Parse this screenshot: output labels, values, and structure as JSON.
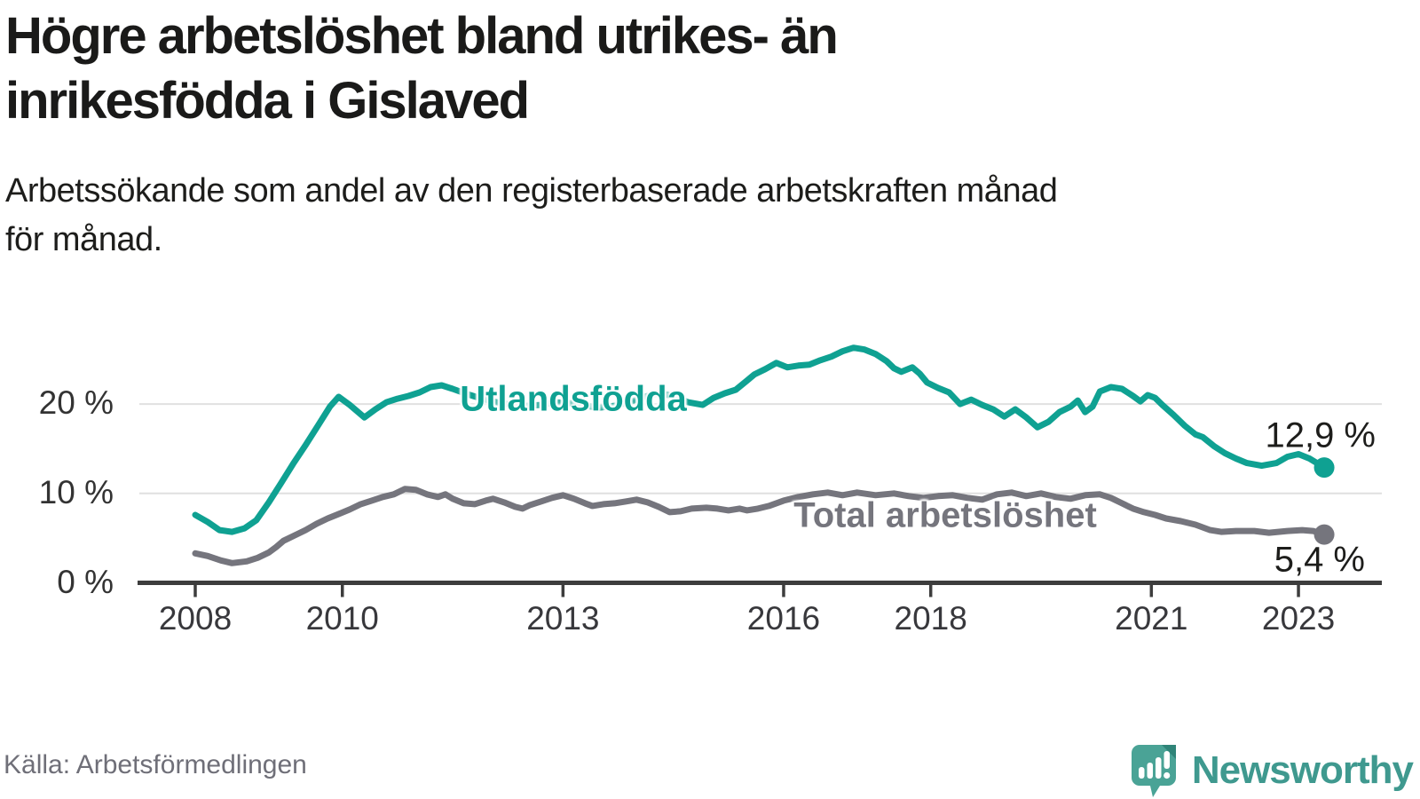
{
  "header": {
    "title_lines": [
      "Högre arbetslöshet bland utrikes- än",
      "inrikesfödda i Gislaved"
    ],
    "subtitle_lines": [
      "Arbetssökande som andel av den registerbaserade arbetskraften månad",
      "för månad."
    ]
  },
  "footer": {
    "source": "Källa: Arbetsförmedlingen",
    "brand_name": "Newsworthy"
  },
  "colors": {
    "foreign_born_line": "#0fa192",
    "total_line": "#75757d",
    "gridline": "#e0e0e0",
    "axis": "#3d3d3d",
    "axis_text": "#333333",
    "annotation_text": "#1d1d1b",
    "logo_teal": "#4aa396",
    "logo_fold": "#2f8478",
    "logo_wordmark": "#3f998f"
  },
  "chart_data": {
    "type": "line",
    "title": "Högre arbetslöshet bland utrikes- än inrikesfödda i Gislaved",
    "subtitle": "Arbetssökande som andel av den registerbaserade arbetskraften månad för månad.",
    "x_axis": {
      "tick_years": [
        2008,
        2010,
        2013,
        2016,
        2018,
        2021,
        2023
      ],
      "tick_labels": [
        "2008",
        "2010",
        "2013",
        "2016",
        "2018",
        "2021",
        "2023"
      ],
      "range": [
        2008,
        2023.35
      ],
      "grid": false
    },
    "y_axis": {
      "tick_values": [
        0,
        10,
        20
      ],
      "tick_labels": [
        "0 %",
        "10 %",
        "20 %"
      ],
      "range": [
        0,
        27
      ],
      "grid": true,
      "unit": "percent"
    },
    "legend_position": "inline-labels",
    "series": [
      {
        "name": "Utlandsfödda",
        "color": "#0fa192",
        "end_label": "12,9 %",
        "end_value": 12.9,
        "points": [
          [
            2008.0,
            7.6
          ],
          [
            2008.17,
            6.8
          ],
          [
            2008.33,
            5.9
          ],
          [
            2008.5,
            5.7
          ],
          [
            2008.67,
            6.1
          ],
          [
            2008.83,
            7.0
          ],
          [
            2009.0,
            9.0
          ],
          [
            2009.17,
            11.2
          ],
          [
            2009.33,
            13.3
          ],
          [
            2009.5,
            15.4
          ],
          [
            2009.67,
            17.6
          ],
          [
            2009.83,
            19.7
          ],
          [
            2009.95,
            20.8
          ],
          [
            2010.1,
            19.9
          ],
          [
            2010.3,
            18.5
          ],
          [
            2010.45,
            19.4
          ],
          [
            2010.6,
            20.2
          ],
          [
            2010.75,
            20.6
          ],
          [
            2010.9,
            20.9
          ],
          [
            2011.05,
            21.3
          ],
          [
            2011.2,
            21.9
          ],
          [
            2011.35,
            22.1
          ],
          [
            2011.5,
            21.7
          ],
          [
            2011.7,
            21.1
          ],
          [
            2011.9,
            20.6
          ],
          [
            2012.1,
            20.2
          ],
          [
            2012.3,
            19.9
          ],
          [
            2012.5,
            19.8
          ],
          [
            2012.7,
            19.9
          ],
          [
            2012.9,
            20.2
          ],
          [
            2013.1,
            20.1
          ],
          [
            2013.3,
            19.8
          ],
          [
            2013.5,
            19.6
          ],
          [
            2013.7,
            19.8
          ],
          [
            2013.9,
            20.2
          ],
          [
            2014.1,
            20.8
          ],
          [
            2014.3,
            21.2
          ],
          [
            2014.5,
            20.9
          ],
          [
            2014.7,
            20.2
          ],
          [
            2014.9,
            19.9
          ],
          [
            2015.05,
            20.7
          ],
          [
            2015.2,
            21.2
          ],
          [
            2015.35,
            21.6
          ],
          [
            2015.5,
            22.6
          ],
          [
            2015.6,
            23.3
          ],
          [
            2015.75,
            23.9
          ],
          [
            2015.9,
            24.6
          ],
          [
            2016.05,
            24.1
          ],
          [
            2016.2,
            24.3
          ],
          [
            2016.35,
            24.4
          ],
          [
            2016.5,
            24.9
          ],
          [
            2016.65,
            25.3
          ],
          [
            2016.8,
            25.9
          ],
          [
            2016.95,
            26.3
          ],
          [
            2017.1,
            26.1
          ],
          [
            2017.25,
            25.6
          ],
          [
            2017.4,
            24.8
          ],
          [
            2017.5,
            24.0
          ],
          [
            2017.6,
            23.6
          ],
          [
            2017.75,
            24.1
          ],
          [
            2017.85,
            23.4
          ],
          [
            2017.95,
            22.4
          ],
          [
            2018.1,
            21.8
          ],
          [
            2018.25,
            21.3
          ],
          [
            2018.4,
            20.0
          ],
          [
            2018.55,
            20.5
          ],
          [
            2018.7,
            19.9
          ],
          [
            2018.85,
            19.4
          ],
          [
            2019.0,
            18.6
          ],
          [
            2019.15,
            19.4
          ],
          [
            2019.3,
            18.5
          ],
          [
            2019.45,
            17.4
          ],
          [
            2019.6,
            18.0
          ],
          [
            2019.75,
            19.1
          ],
          [
            2019.9,
            19.7
          ],
          [
            2020.0,
            20.4
          ],
          [
            2020.1,
            19.1
          ],
          [
            2020.2,
            19.7
          ],
          [
            2020.3,
            21.4
          ],
          [
            2020.45,
            21.9
          ],
          [
            2020.6,
            21.7
          ],
          [
            2020.75,
            20.9
          ],
          [
            2020.85,
            20.3
          ],
          [
            2020.95,
            21.0
          ],
          [
            2021.05,
            20.7
          ],
          [
            2021.15,
            19.9
          ],
          [
            2021.3,
            18.8
          ],
          [
            2021.45,
            17.6
          ],
          [
            2021.6,
            16.6
          ],
          [
            2021.7,
            16.3
          ],
          [
            2021.85,
            15.3
          ],
          [
            2022.0,
            14.5
          ],
          [
            2022.15,
            13.9
          ],
          [
            2022.3,
            13.4
          ],
          [
            2022.5,
            13.1
          ],
          [
            2022.7,
            13.4
          ],
          [
            2022.85,
            14.1
          ],
          [
            2023.0,
            14.4
          ],
          [
            2023.15,
            13.9
          ],
          [
            2023.35,
            12.9
          ]
        ]
      },
      {
        "name": "Total arbetslöshet",
        "color": "#75757d",
        "end_label": "5,4 %",
        "end_value": 5.4,
        "points": [
          [
            2008.0,
            3.3
          ],
          [
            2008.17,
            3.0
          ],
          [
            2008.35,
            2.5
          ],
          [
            2008.5,
            2.2
          ],
          [
            2008.7,
            2.4
          ],
          [
            2008.85,
            2.8
          ],
          [
            2009.0,
            3.4
          ],
          [
            2009.1,
            4.0
          ],
          [
            2009.2,
            4.7
          ],
          [
            2009.35,
            5.3
          ],
          [
            2009.5,
            5.9
          ],
          [
            2009.65,
            6.6
          ],
          [
            2009.8,
            7.2
          ],
          [
            2009.95,
            7.7
          ],
          [
            2010.1,
            8.2
          ],
          [
            2010.25,
            8.8
          ],
          [
            2010.4,
            9.2
          ],
          [
            2010.55,
            9.6
          ],
          [
            2010.7,
            9.9
          ],
          [
            2010.85,
            10.5
          ],
          [
            2011.0,
            10.4
          ],
          [
            2011.15,
            9.9
          ],
          [
            2011.3,
            9.6
          ],
          [
            2011.4,
            9.9
          ],
          [
            2011.5,
            9.4
          ],
          [
            2011.65,
            8.9
          ],
          [
            2011.8,
            8.8
          ],
          [
            2011.95,
            9.2
          ],
          [
            2012.05,
            9.4
          ],
          [
            2012.2,
            9.0
          ],
          [
            2012.35,
            8.5
          ],
          [
            2012.45,
            8.3
          ],
          [
            2012.55,
            8.7
          ],
          [
            2012.7,
            9.1
          ],
          [
            2012.85,
            9.5
          ],
          [
            2013.0,
            9.8
          ],
          [
            2013.15,
            9.4
          ],
          [
            2013.3,
            8.9
          ],
          [
            2013.4,
            8.6
          ],
          [
            2013.55,
            8.8
          ],
          [
            2013.7,
            8.9
          ],
          [
            2013.85,
            9.1
          ],
          [
            2014.0,
            9.3
          ],
          [
            2014.15,
            9.0
          ],
          [
            2014.3,
            8.5
          ],
          [
            2014.45,
            7.9
          ],
          [
            2014.6,
            8.0
          ],
          [
            2014.75,
            8.3
          ],
          [
            2014.95,
            8.4
          ],
          [
            2015.1,
            8.3
          ],
          [
            2015.25,
            8.1
          ],
          [
            2015.4,
            8.3
          ],
          [
            2015.5,
            8.1
          ],
          [
            2015.65,
            8.3
          ],
          [
            2015.8,
            8.6
          ],
          [
            2016.0,
            9.2
          ],
          [
            2016.2,
            9.6
          ],
          [
            2016.4,
            9.9
          ],
          [
            2016.6,
            10.1
          ],
          [
            2016.8,
            9.8
          ],
          [
            2017.0,
            10.1
          ],
          [
            2017.25,
            9.8
          ],
          [
            2017.5,
            10.0
          ],
          [
            2017.7,
            9.7
          ],
          [
            2017.9,
            9.5
          ],
          [
            2018.1,
            9.7
          ],
          [
            2018.3,
            9.8
          ],
          [
            2018.5,
            9.5
          ],
          [
            2018.7,
            9.3
          ],
          [
            2018.9,
            9.9
          ],
          [
            2019.1,
            10.1
          ],
          [
            2019.3,
            9.7
          ],
          [
            2019.5,
            10.0
          ],
          [
            2019.7,
            9.6
          ],
          [
            2019.9,
            9.4
          ],
          [
            2020.1,
            9.8
          ],
          [
            2020.3,
            9.9
          ],
          [
            2020.45,
            9.5
          ],
          [
            2020.6,
            8.9
          ],
          [
            2020.75,
            8.3
          ],
          [
            2020.9,
            7.9
          ],
          [
            2021.05,
            7.6
          ],
          [
            2021.2,
            7.2
          ],
          [
            2021.4,
            6.9
          ],
          [
            2021.6,
            6.5
          ],
          [
            2021.8,
            5.9
          ],
          [
            2021.95,
            5.7
          ],
          [
            2022.15,
            5.8
          ],
          [
            2022.4,
            5.8
          ],
          [
            2022.6,
            5.6
          ],
          [
            2022.85,
            5.8
          ],
          [
            2023.05,
            5.9
          ],
          [
            2023.2,
            5.8
          ],
          [
            2023.35,
            5.4
          ]
        ]
      }
    ]
  }
}
